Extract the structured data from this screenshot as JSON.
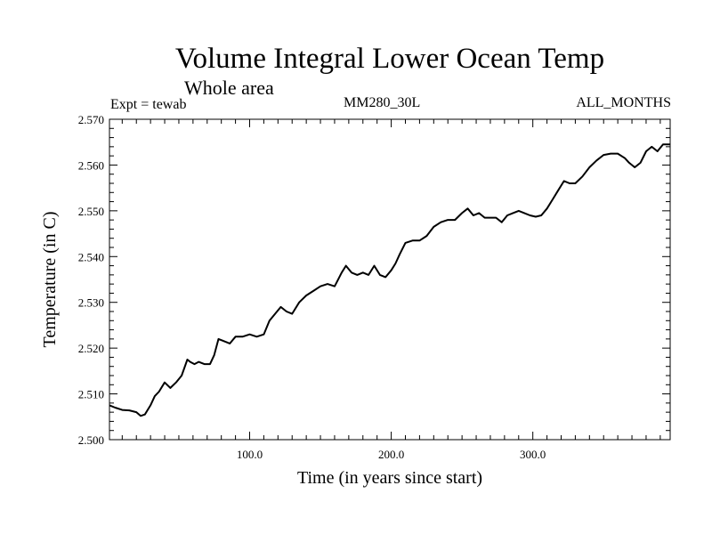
{
  "header": {
    "title": "Volume Integral Lower Ocean Temp",
    "subtitle": "Whole area",
    "expt": "Expt = tewab",
    "run": "MM280_30L",
    "months": "ALL_MONTHS"
  },
  "chart_data": {
    "type": "line",
    "title": "Volume Integral Lower Ocean Temp",
    "subtitle": "Whole area",
    "xlabel": "Time (in years since start)",
    "ylabel": "Temperature (in C)",
    "xlim": [
      1,
      397
    ],
    "ylim": [
      2.5,
      2.57
    ],
    "x_ticks": [
      100,
      200,
      300
    ],
    "x_tick_labels": [
      "100.0",
      "200.0",
      "300.0"
    ],
    "y_ticks": [
      2.5,
      2.51,
      2.52,
      2.53,
      2.54,
      2.55,
      2.56,
      2.57
    ],
    "y_tick_labels": [
      "2.500",
      "2.510",
      "2.520",
      "2.530",
      "2.540",
      "2.550",
      "2.560",
      "2.570"
    ],
    "grid": false,
    "series": [
      {
        "color": "#000000",
        "x": [
          1,
          5,
          10,
          15,
          20,
          23,
          26,
          30,
          33,
          36,
          40,
          44,
          48,
          52,
          56,
          58,
          61,
          64,
          68,
          72,
          75,
          78,
          82,
          86,
          90,
          95,
          100,
          105,
          110,
          114,
          118,
          122,
          126,
          130,
          135,
          140,
          145,
          150,
          155,
          160,
          165,
          168,
          172,
          176,
          180,
          184,
          188,
          192,
          196,
          200,
          203,
          206,
          210,
          215,
          220,
          225,
          230,
          235,
          240,
          245,
          250,
          254,
          258,
          262,
          266,
          270,
          274,
          278,
          282,
          286,
          290,
          294,
          298,
          302,
          306,
          310,
          314,
          318,
          322,
          326,
          330,
          335,
          340,
          345,
          350,
          355,
          360,
          365,
          368,
          372,
          376,
          380,
          384,
          388,
          392,
          397
        ],
        "y": [
          2.5075,
          2.507,
          2.5065,
          2.5064,
          2.506,
          2.5052,
          2.5055,
          2.5075,
          2.5095,
          2.5105,
          2.5125,
          2.5113,
          2.5125,
          2.514,
          2.5175,
          2.517,
          2.5165,
          2.517,
          2.5165,
          2.5165,
          2.5185,
          2.522,
          2.5215,
          2.521,
          2.5225,
          2.5225,
          2.523,
          2.5225,
          2.523,
          2.526,
          2.5275,
          2.529,
          2.528,
          2.5275,
          2.53,
          2.5315,
          2.5325,
          2.5335,
          2.534,
          2.5335,
          2.5365,
          2.538,
          2.5365,
          2.536,
          2.5365,
          2.536,
          2.538,
          2.536,
          2.5355,
          2.537,
          2.5385,
          2.5405,
          2.543,
          2.5435,
          2.5435,
          2.5445,
          2.5465,
          2.5475,
          2.548,
          2.548,
          2.5495,
          2.5505,
          2.549,
          2.5495,
          2.5485,
          2.5485,
          2.5485,
          2.5475,
          2.549,
          2.5495,
          2.55,
          2.5495,
          2.549,
          2.5487,
          2.549,
          2.5505,
          2.5525,
          2.5545,
          2.5565,
          2.556,
          2.556,
          2.5575,
          2.5595,
          2.561,
          2.5622,
          2.5625,
          2.5625,
          2.5615,
          2.5605,
          2.5595,
          2.5605,
          2.563,
          2.564,
          2.563,
          2.5645,
          2.5645
        ]
      }
    ]
  }
}
